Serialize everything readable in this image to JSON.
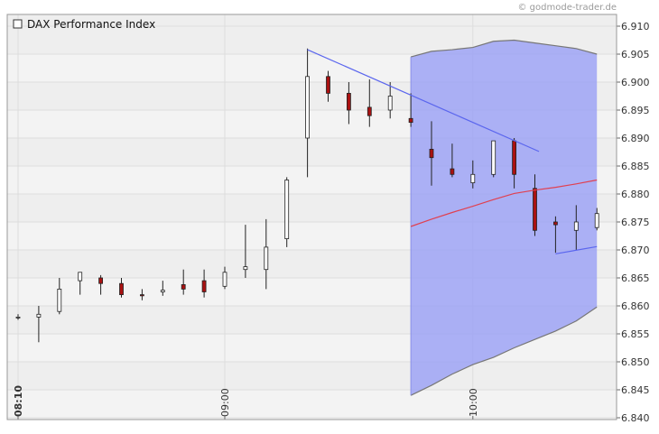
{
  "watermark": "© godmode-trader.de",
  "chart_data": {
    "type": "candlestick",
    "title": "DAX Performance Index",
    "y_axis_side": "right",
    "ylim": [
      6.84,
      6.91
    ],
    "yticks": [
      "6.910",
      "6.905",
      "6.900",
      "6.895",
      "6.890",
      "6.885",
      "6.880",
      "6.875",
      "6.870",
      "6.865",
      "6.860",
      "6.855",
      "6.850",
      "6.845",
      "6.840"
    ],
    "yticks_values": [
      6.91,
      6.905,
      6.9,
      6.895,
      6.89,
      6.885,
      6.88,
      6.875,
      6.87,
      6.865,
      6.86,
      6.855,
      6.85,
      6.845,
      6.84
    ],
    "xticks": [
      {
        "label": "08:10",
        "bar": 0,
        "bold": true
      },
      {
        "label": "09:00",
        "bar": 10,
        "bold": false
      },
      {
        "label": "10:00",
        "bar": 22,
        "bold": false
      }
    ],
    "grid": true,
    "colors": {
      "up_body": "#ffffff",
      "down_body": "#aa1111",
      "wick": "#222222",
      "band_fill": "#9ea3f5",
      "band_edge": "#777777",
      "trendline": "#5b66ee",
      "average": "#e04050",
      "background": "#eeeeee",
      "grid": "#dddddd"
    },
    "candles": [
      {
        "o": 6.858,
        "h": 6.8585,
        "l": 6.8575,
        "c": 6.858
      },
      {
        "o": 6.858,
        "h": 6.86,
        "l": 6.8535,
        "c": 6.8585
      },
      {
        "o": 6.859,
        "h": 6.865,
        "l": 6.8585,
        "c": 6.863
      },
      {
        "o": 6.8645,
        "h": 6.866,
        "l": 6.862,
        "c": 6.866
      },
      {
        "o": 6.865,
        "h": 6.8655,
        "l": 6.862,
        "c": 6.864
      },
      {
        "o": 6.864,
        "h": 6.865,
        "l": 6.8615,
        "c": 6.862
      },
      {
        "o": 6.862,
        "h": 6.863,
        "l": 6.861,
        "c": 6.8618
      },
      {
        "o": 6.8625,
        "h": 6.8645,
        "l": 6.8618,
        "c": 6.8628
      },
      {
        "o": 6.8638,
        "h": 6.8665,
        "l": 6.862,
        "c": 6.863
      },
      {
        "o": 6.8645,
        "h": 6.8665,
        "l": 6.8615,
        "c": 6.8625
      },
      {
        "o": 6.8635,
        "h": 6.867,
        "l": 6.863,
        "c": 6.866
      },
      {
        "o": 6.8665,
        "h": 6.8745,
        "l": 6.865,
        "c": 6.867
      },
      {
        "o": 6.8665,
        "h": 6.8755,
        "l": 6.863,
        "c": 6.8705
      },
      {
        "o": 6.872,
        "h": 6.883,
        "l": 6.8705,
        "c": 6.8825
      },
      {
        "o": 6.89,
        "h": 6.906,
        "l": 6.883,
        "c": 6.901
      },
      {
        "o": 6.901,
        "h": 6.902,
        "l": 6.8965,
        "c": 6.898
      },
      {
        "o": 6.898,
        "h": 6.9,
        "l": 6.8925,
        "c": 6.895
      },
      {
        "o": 6.8955,
        "h": 6.9005,
        "l": 6.892,
        "c": 6.894
      },
      {
        "o": 6.895,
        "h": 6.9,
        "l": 6.8935,
        "c": 6.8975
      },
      {
        "o": 6.8935,
        "h": 6.898,
        "l": 6.892,
        "c": 6.8928
      },
      {
        "o": 6.888,
        "h": 6.893,
        "l": 6.8815,
        "c": 6.8865
      },
      {
        "o": 6.8845,
        "h": 6.889,
        "l": 6.883,
        "c": 6.8835
      },
      {
        "o": 6.882,
        "h": 6.886,
        "l": 6.881,
        "c": 6.8835
      },
      {
        "o": 6.8835,
        "h": 6.8895,
        "l": 6.883,
        "c": 6.8895
      },
      {
        "o": 6.8895,
        "h": 6.89,
        "l": 6.881,
        "c": 6.8835
      },
      {
        "o": 6.881,
        "h": 6.8835,
        "l": 6.8725,
        "c": 6.8735
      },
      {
        "o": 6.875,
        "h": 6.876,
        "l": 6.8695,
        "c": 6.8745
      },
      {
        "o": 6.8735,
        "h": 6.878,
        "l": 6.87,
        "c": 6.875
      },
      {
        "o": 6.874,
        "h": 6.8775,
        "l": 6.8735,
        "c": 6.8765
      }
    ],
    "band": {
      "start_bar": 19,
      "end_bar": 28,
      "upper": [
        6.9045,
        6.9055,
        6.9058,
        6.9062,
        6.9073,
        6.9075,
        6.907,
        6.9065,
        6.906,
        6.905
      ],
      "lower": [
        6.844,
        6.8458,
        6.8478,
        6.8495,
        6.8508,
        6.8525,
        6.854,
        6.8555,
        6.8573,
        6.8598
      ]
    },
    "average_line": [
      {
        "bar": 19,
        "y": 6.8742
      },
      {
        "bar": 20,
        "y": 6.8755
      },
      {
        "bar": 21,
        "y": 6.8767
      },
      {
        "bar": 22,
        "y": 6.8778
      },
      {
        "bar": 23,
        "y": 6.879
      },
      {
        "bar": 24,
        "y": 6.8801
      },
      {
        "bar": 25,
        "y": 6.8807
      },
      {
        "bar": 26,
        "y": 6.8812
      },
      {
        "bar": 27,
        "y": 6.8818
      },
      {
        "bar": 28,
        "y": 6.8825
      }
    ],
    "trendlines": [
      {
        "from": {
          "bar": 14,
          "y": 6.9058
        },
        "to": {
          "bar": 25.2,
          "y": 6.8876
        }
      },
      {
        "from": {
          "bar": 26,
          "y": 6.8693
        },
        "to": {
          "bar": 28,
          "y": 6.8706
        }
      }
    ]
  }
}
